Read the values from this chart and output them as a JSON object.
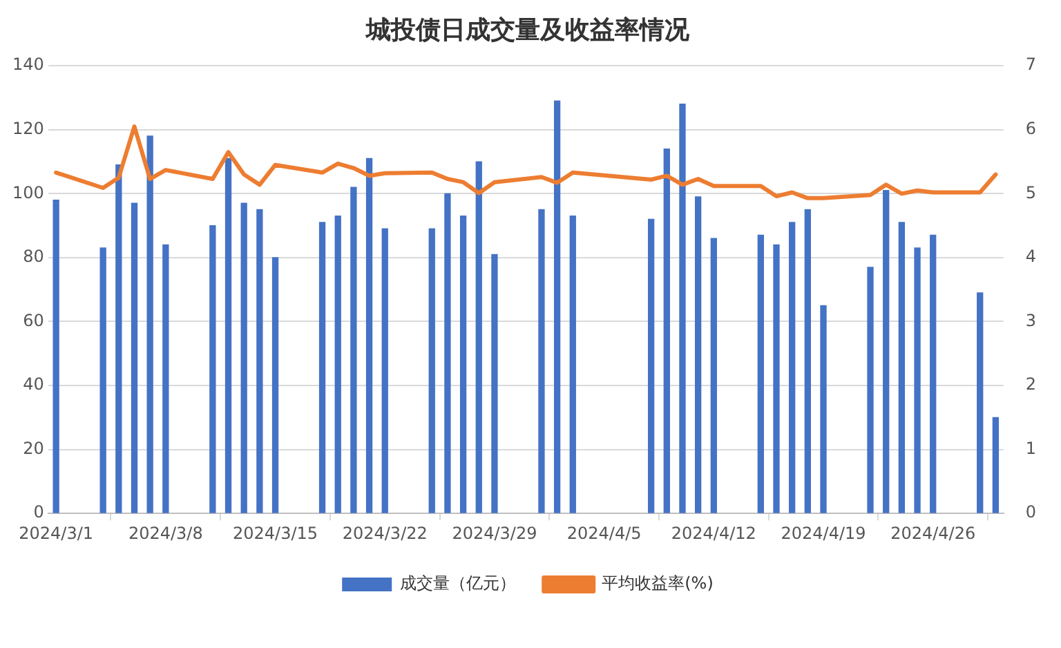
{
  "chart_data": {
    "type": "bar",
    "title": "城投债日成交量及收益率情况",
    "x": [
      "2024-03-01",
      "2024-03-04",
      "2024-03-05",
      "2024-03-06",
      "2024-03-07",
      "2024-03-08",
      "2024-03-11",
      "2024-03-12",
      "2024-03-13",
      "2024-03-14",
      "2024-03-15",
      "2024-03-18",
      "2024-03-19",
      "2024-03-20",
      "2024-03-21",
      "2024-03-22",
      "2024-03-25",
      "2024-03-26",
      "2024-03-27",
      "2024-03-28",
      "2024-03-29",
      "2024-04-01",
      "2024-04-02",
      "2024-04-03",
      "2024-04-08",
      "2024-04-09",
      "2024-04-10",
      "2024-04-11",
      "2024-04-12",
      "2024-04-15",
      "2024-04-16",
      "2024-04-17",
      "2024-04-18",
      "2024-04-19",
      "2024-04-22",
      "2024-04-23",
      "2024-04-24",
      "2024-04-25",
      "2024-04-26",
      "2024-04-29",
      "2024-04-30"
    ],
    "series": [
      {
        "name": "成交量（亿元）",
        "color": "#4472c4",
        "values": [
          98,
          83,
          109,
          97,
          118,
          84,
          90,
          111,
          97,
          95,
          80,
          91,
          93,
          102,
          111,
          89,
          89,
          100,
          93,
          110,
          81,
          95,
          129,
          93,
          92,
          114,
          128,
          99,
          86,
          87,
          84,
          91,
          95,
          65,
          77,
          101,
          91,
          83,
          87,
          69,
          30
        ]
      },
      {
        "name": "平均收益率(%)",
        "type": "line",
        "axis": "y2",
        "color": "#ed7d31",
        "values": [
          5.33,
          5.09,
          5.25,
          6.05,
          5.23,
          5.37,
          5.23,
          5.65,
          5.3,
          5.14,
          5.45,
          5.33,
          5.47,
          5.4,
          5.28,
          5.32,
          5.33,
          5.23,
          5.18,
          5.01,
          5.18,
          5.26,
          5.17,
          5.33,
          5.22,
          5.28,
          5.14,
          5.23,
          5.12,
          5.12,
          4.96,
          5.02,
          4.93,
          4.93,
          4.98,
          5.14,
          5.0,
          5.05,
          5.02,
          5.02,
          5.3
        ]
      }
    ],
    "xlim": [
      "2024-02-29T12:00",
      "2024-04-30T12:00"
    ],
    "xticks": [
      {
        "value": "2024-03-01",
        "label": "2024/3/1"
      },
      {
        "value": "2024-03-08",
        "label": "2024/3/8"
      },
      {
        "value": "2024-03-15",
        "label": "2024/3/15"
      },
      {
        "value": "2024-03-22",
        "label": "2024/3/22"
      },
      {
        "value": "2024-03-29",
        "label": "2024/3/29"
      },
      {
        "value": "2024-04-05",
        "label": "2024/4/5"
      },
      {
        "value": "2024-04-12",
        "label": "2024/4/12"
      },
      {
        "value": "2024-04-19",
        "label": "2024/4/19"
      },
      {
        "value": "2024-04-26",
        "label": "2024/4/26"
      }
    ],
    "ylim": [
      0,
      140
    ],
    "yticks": [
      0,
      20,
      40,
      60,
      80,
      100,
      120,
      140
    ],
    "y2lim": [
      0,
      7
    ],
    "y2ticks": [
      0,
      1,
      2,
      3,
      4,
      5,
      6,
      7
    ],
    "grid": "y",
    "legend": "bottom",
    "marker": "none",
    "line_style": "solid"
  }
}
